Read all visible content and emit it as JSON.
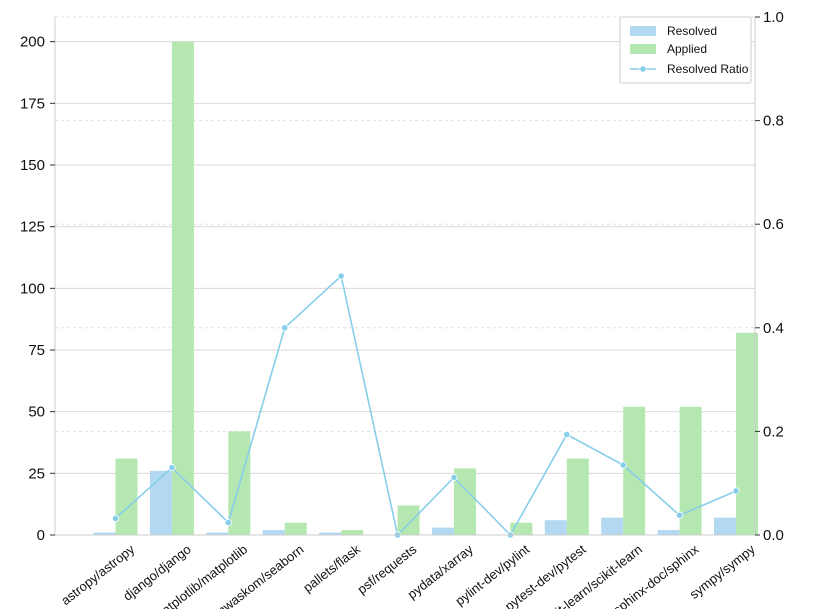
{
  "chart_data": {
    "type": "bar",
    "categories": [
      "astropy/astropy",
      "django/django",
      "matplotlib/matplotlib",
      "mwaskom/seaborn",
      "pallets/flask",
      "psf/requests",
      "pydata/xarray",
      "pylint-dev/pylint",
      "pytest-dev/pytest",
      "scikit-learn/scikit-learn",
      "sphinx-doc/sphinx",
      "sympy/sympy"
    ],
    "series": [
      {
        "name": "Resolved",
        "kind": "bar",
        "axis": "left",
        "color": "#b3d9f2",
        "values": [
          1,
          26,
          1,
          2,
          1,
          0,
          3,
          0,
          6,
          7,
          2,
          7
        ]
      },
      {
        "name": "Applied",
        "kind": "bar",
        "axis": "left",
        "color": "#b5e8b0",
        "values": [
          31,
          200,
          42,
          5,
          2,
          12,
          27,
          5,
          31,
          52,
          52,
          82
        ]
      },
      {
        "name": "Resolved Ratio",
        "kind": "line",
        "axis": "right",
        "color": "#87ceeb",
        "values": [
          0.032,
          0.13,
          0.024,
          0.4,
          0.5,
          0.0,
          0.111,
          0.0,
          0.194,
          0.135,
          0.038,
          0.085
        ]
      }
    ],
    "left_axis": {
      "ticks": [
        "0",
        "25",
        "50",
        "75",
        "100",
        "125",
        "150",
        "175",
        "200"
      ],
      "range": [
        0,
        210
      ]
    },
    "right_axis": {
      "ticks": [
        "0.0",
        "0.2",
        "0.4",
        "0.6",
        "0.8",
        "1.0"
      ],
      "range": [
        0,
        1.0
      ]
    },
    "grid": true,
    "legend_position": "top-right"
  }
}
